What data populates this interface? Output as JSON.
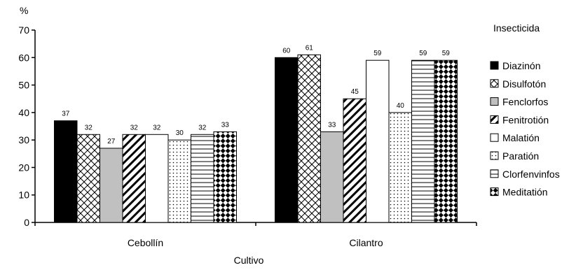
{
  "chart_data": {
    "type": "bar",
    "ylabel": "%",
    "xlabel": "Cultivo",
    "ylim": [
      0,
      70
    ],
    "yticks": [
      0,
      10,
      20,
      30,
      40,
      50,
      60,
      70
    ],
    "grid": false,
    "legend_title": "Insecticida",
    "legend_position": "right",
    "categories": [
      "Cebollín",
      "Cilantro"
    ],
    "series": [
      {
        "name": "Diazinón",
        "pattern": "solid-black",
        "values": [
          37,
          60
        ]
      },
      {
        "name": "Disulfotón",
        "pattern": "crosshatch",
        "values": [
          32,
          61
        ]
      },
      {
        "name": "Fenclorfos",
        "pattern": "solid-gray",
        "values": [
          27,
          33
        ]
      },
      {
        "name": "Fenitrotión",
        "pattern": "diagonal-stripes",
        "values": [
          32,
          45
        ]
      },
      {
        "name": "Malatión",
        "pattern": "solid-white",
        "values": [
          32,
          59
        ]
      },
      {
        "name": "Paratión",
        "pattern": "dots",
        "values": [
          30,
          40
        ]
      },
      {
        "name": "Clorfenvinfos",
        "pattern": "horizontal-lines",
        "values": [
          32,
          59
        ]
      },
      {
        "name": "Meditatión",
        "pattern": "checkerboard",
        "values": [
          33,
          59
        ]
      }
    ]
  },
  "colors": {
    "black": "#000000",
    "gray": "#c0c0c0",
    "white": "#ffffff"
  }
}
